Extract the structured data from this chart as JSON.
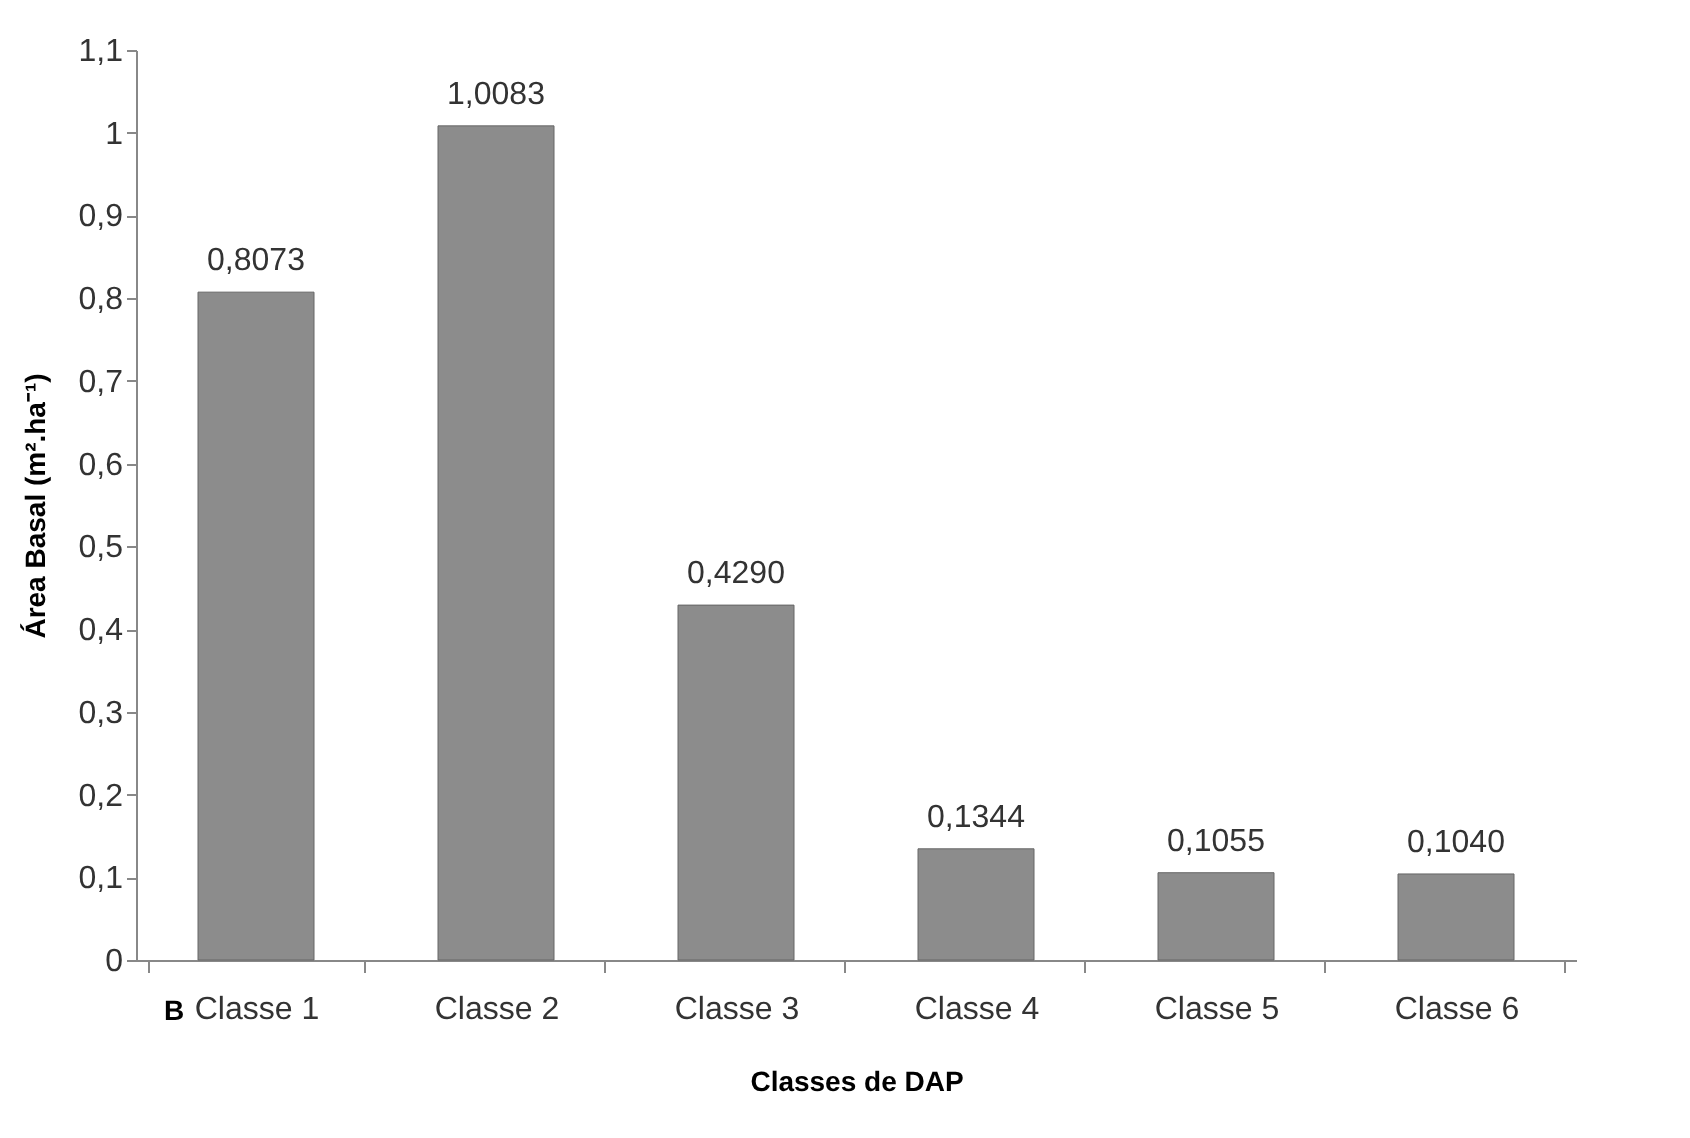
{
  "chart_data": {
    "type": "bar",
    "xlabel": "Classes de DAP",
    "ylabel": "Área Basal (m².ha⁻¹)",
    "categories": [
      "Classe 1",
      "Classe 2",
      "Classe 3",
      "Classe 4",
      "Classe 5",
      "Classe 6"
    ],
    "values": [
      0.8073,
      1.0083,
      0.429,
      0.1344,
      0.1055,
      0.104
    ],
    "value_labels": [
      "0,8073",
      "1,0083",
      "0,4290",
      "0,1344",
      "0,1055",
      "0,1040"
    ],
    "color": "#8c8c8c",
    "ylim": [
      0,
      1.1
    ],
    "yticks": [
      0,
      {
        "value": 0.1,
        "label": "0,1"
      },
      {
        "value": 0.2,
        "label": "0,2"
      },
      {
        "value": 0.3,
        "label": "0,3"
      },
      {
        "value": 0.4,
        "label": "0,4"
      },
      {
        "value": 0.5,
        "label": "0,5"
      },
      {
        "value": 0.6,
        "label": "0,6"
      },
      {
        "value": 0.7,
        "label": "0,7"
      },
      {
        "value": 0.8,
        "label": "0,8"
      },
      {
        "value": 0.9,
        "label": "0,9"
      },
      1,
      {
        "value": 1.1,
        "label": "1,1"
      }
    ],
    "grid": false,
    "annotations": [
      "B"
    ]
  }
}
